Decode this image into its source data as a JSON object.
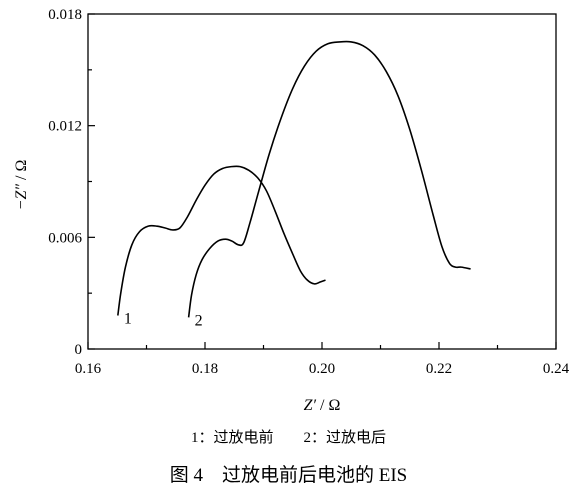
{
  "chart_data": {
    "type": "line",
    "xlabel_main": "Z′",
    "xlabel_unit": " / Ω",
    "ylabel_main": "−Z″",
    "ylabel_unit": " / Ω",
    "xlim": [
      0.16,
      0.24
    ],
    "ylim": [
      0,
      0.018
    ],
    "x_ticks": [
      0.16,
      0.18,
      0.2,
      0.22,
      0.24
    ],
    "x_tick_labels": [
      "0.16",
      "0.18",
      "0.20",
      "0.22",
      "0.24"
    ],
    "y_ticks": [
      0,
      0.006,
      0.012,
      0.018
    ],
    "y_tick_labels": [
      "0",
      "0.006",
      "0.012",
      "0.018"
    ],
    "grid": false,
    "series": [
      {
        "name": "1",
        "color": "#000000",
        "points": [
          [
            0.1651,
            0.0018
          ],
          [
            0.1656,
            0.003
          ],
          [
            0.1664,
            0.0044
          ],
          [
            0.1675,
            0.0056
          ],
          [
            0.1688,
            0.0063
          ],
          [
            0.1703,
            0.0066
          ],
          [
            0.1718,
            0.0066
          ],
          [
            0.1732,
            0.0065
          ],
          [
            0.1745,
            0.0064
          ],
          [
            0.1757,
            0.0065
          ],
          [
            0.177,
            0.0071
          ],
          [
            0.1785,
            0.008
          ],
          [
            0.18,
            0.0088
          ],
          [
            0.1815,
            0.0094
          ],
          [
            0.183,
            0.0097
          ],
          [
            0.1845,
            0.0098
          ],
          [
            0.186,
            0.0098
          ],
          [
            0.1875,
            0.0096
          ],
          [
            0.189,
            0.0092
          ],
          [
            0.1905,
            0.0085
          ],
          [
            0.192,
            0.0074
          ],
          [
            0.1935,
            0.0062
          ],
          [
            0.195,
            0.0051
          ],
          [
            0.1963,
            0.0042
          ],
          [
            0.1975,
            0.0037
          ],
          [
            0.1987,
            0.0035
          ],
          [
            0.1997,
            0.0036
          ],
          [
            0.2006,
            0.0037
          ]
        ]
      },
      {
        "name": "2",
        "color": "#000000",
        "points": [
          [
            0.1772,
            0.0017
          ],
          [
            0.1777,
            0.0029
          ],
          [
            0.1785,
            0.004
          ],
          [
            0.1795,
            0.0048
          ],
          [
            0.1808,
            0.0054
          ],
          [
            0.1822,
            0.0058
          ],
          [
            0.1835,
            0.0059
          ],
          [
            0.1846,
            0.0058
          ],
          [
            0.1857,
            0.0056
          ],
          [
            0.1866,
            0.0057
          ],
          [
            0.1877,
            0.0068
          ],
          [
            0.1892,
            0.0085
          ],
          [
            0.191,
            0.0105
          ],
          [
            0.193,
            0.0124
          ],
          [
            0.195,
            0.014
          ],
          [
            0.197,
            0.0152
          ],
          [
            0.199,
            0.016
          ],
          [
            0.201,
            0.0164
          ],
          [
            0.203,
            0.0165
          ],
          [
            0.205,
            0.0165
          ],
          [
            0.207,
            0.0163
          ],
          [
            0.209,
            0.0158
          ],
          [
            0.211,
            0.0149
          ],
          [
            0.213,
            0.0136
          ],
          [
            0.215,
            0.0118
          ],
          [
            0.217,
            0.0096
          ],
          [
            0.219,
            0.0072
          ],
          [
            0.2205,
            0.0055
          ],
          [
            0.2218,
            0.0046
          ],
          [
            0.2228,
            0.0044
          ],
          [
            0.2238,
            0.0044
          ],
          [
            0.2254,
            0.0043
          ]
        ]
      }
    ]
  },
  "legend_text": "1：过放电前　　2：过放电后",
  "caption_text": "图 4　过放电前后电池的 EIS"
}
